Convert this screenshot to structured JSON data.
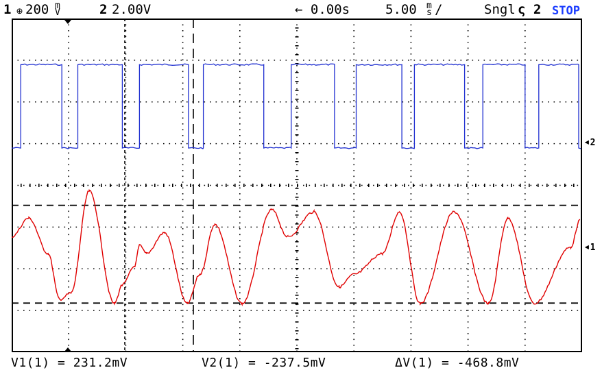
{
  "header": {
    "ch1_number": "1",
    "ch1_coupling_symbol": "⊕",
    "ch1_scale_value": "200",
    "ch1_scale_unit_top": "m",
    "ch1_scale_unit_bottom": "V",
    "ch2_number": "2",
    "ch2_scale": "2.00V",
    "time_offset": "← 0.00s",
    "time_scale_value": "5.00",
    "time_scale_unit_top": "m",
    "time_scale_unit_bottom": "s",
    "time_scale_suffix": "/",
    "trigger_mode": "Sngl",
    "trigger_source": "ς 2",
    "run_state": "STOP"
  },
  "markers": {
    "ch2_ground": "2",
    "ch1_ground": "1"
  },
  "readouts": {
    "v1": "V1(1) = 231.2mV",
    "v2": "V2(1) = -237.5mV",
    "dv": "ΔV(1) = -468.8mV"
  },
  "colors": {
    "ch1": "#e00000",
    "ch2": "#1f2fd0",
    "grid": "#000000",
    "stop": "#1a3cff"
  },
  "chart_data": {
    "type": "line",
    "x_unit": "ms",
    "x_per_division": 5.0,
    "x_divisions": 10,
    "xlim": [
      -25,
      25
    ],
    "series": [
      {
        "channel": 2,
        "volts_per_division": 2.0,
        "kind": "square",
        "high_div": 3.0,
        "low_div": 1.0,
        "edges_ms": [
          -24.2,
          -20.6,
          -19.2,
          -15.3,
          -13.8,
          -9.5,
          -8.2,
          -2.9,
          -0.5,
          3.3,
          5.2,
          9.2,
          10.3,
          14.7,
          16.3,
          20.0,
          21.2,
          24.7
        ]
      },
      {
        "channel": 1,
        "volts_per_division": 0.2,
        "kind": "noisy-sine",
        "x_ms": [
          -25.0,
          -23.5,
          -21.8,
          -20.8,
          -19.8,
          -18.2,
          -16.0,
          -15.3,
          -14.2,
          -13.8,
          -13.2,
          -11.6,
          -9.6,
          -8.5,
          -7.2,
          -4.8,
          -2.2,
          -0.8,
          1.5,
          3.7,
          5.0,
          7.5,
          9.0,
          10.8,
          13.8,
          16.8,
          18.5,
          20.8,
          24.0,
          24.8
        ],
        "y_mv": [
          80,
          170,
          0,
          -220,
          -190,
          300,
          -240,
          -150,
          -60,
          40,
          0,
          100,
          -240,
          -100,
          140,
          -240,
          210,
          80,
          200,
          -160,
          -100,
          0,
          200,
          -240,
          200,
          -240,
          170,
          -240,
          30,
          160
        ]
      }
    ],
    "cursors_mv": [
      231.2,
      -237.5
    ],
    "grid": true
  }
}
